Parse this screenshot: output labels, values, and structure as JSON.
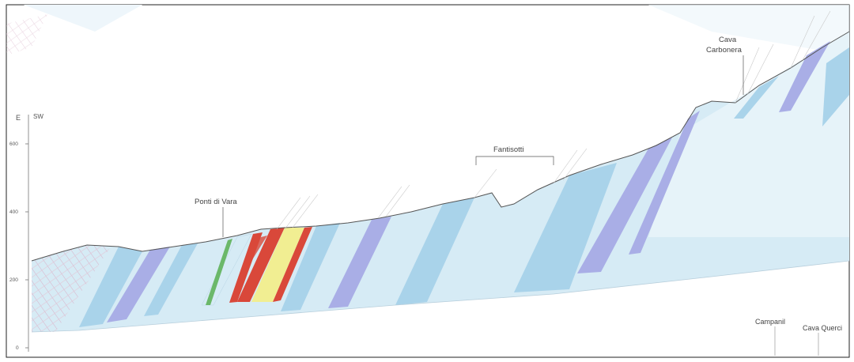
{
  "section": {
    "axis_unit": "E",
    "axis_side": "SW",
    "elevation_ticks": [
      "600",
      "400",
      "200",
      "0"
    ],
    "places": {
      "cava_carbonera_line1": "Cava",
      "cava_carbonera_line2": "Carbonera",
      "fantisotti": "Fantisotti",
      "ponti_di_vara": "Ponti di Vara",
      "campanil": "Campanil",
      "cava_querci": "Cava Querci"
    },
    "colors": {
      "light_blue": "#d6ebf5",
      "pale_blue": "#e6f3f9",
      "mid_blue": "#a9d3ea",
      "lavender": "#a9aee6",
      "red": "#d9483a",
      "yellow": "#f1ee92",
      "green": "#6bb86a",
      "pink_hatch": "#d8b0c8"
    }
  }
}
